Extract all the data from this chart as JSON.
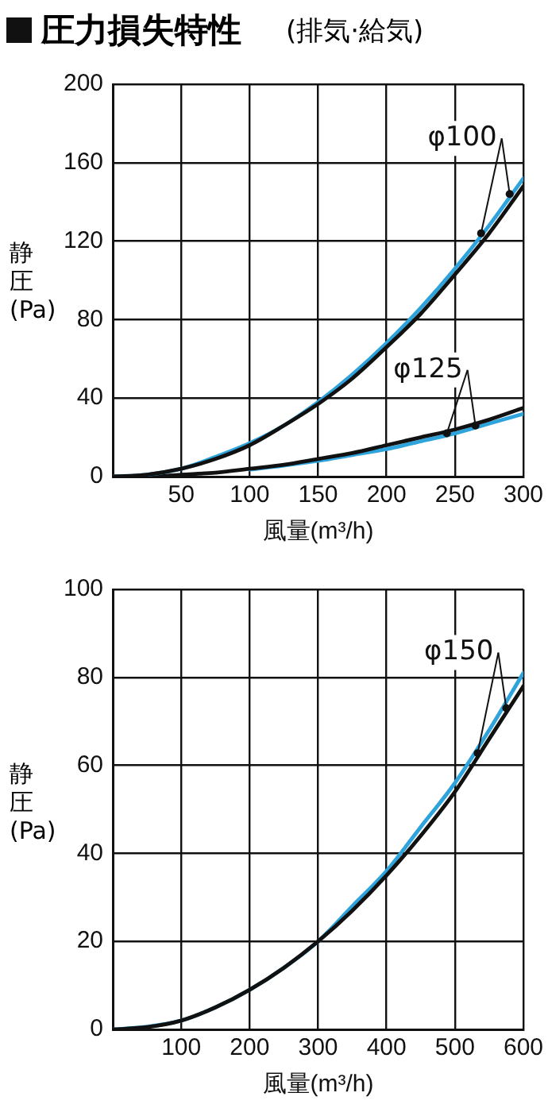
{
  "chart_data": [
    {
      "type": "line",
      "title": "圧力損失特性",
      "subtitle": "(排気·給気)",
      "xlabel": "風量(m³/h)",
      "ylabel": "静圧(Pa)",
      "x": [
        0,
        25,
        50,
        75,
        100,
        125,
        150,
        175,
        200,
        225,
        250,
        275,
        300
      ],
      "series": [
        {
          "color": "#111111",
          "values": [
            0,
            1,
            4,
            9,
            16,
            26,
            37,
            50,
            66,
            83,
            103,
            124,
            148
          ]
        },
        {
          "color": "#2ea3dc",
          "values": [
            0,
            1,
            4,
            10,
            17,
            26,
            38,
            52,
            68,
            86,
            106,
            128,
            152
          ]
        },
        {
          "color": "#111111",
          "values": [
            0,
            0,
            1,
            2,
            4,
            6,
            9,
            12,
            16,
            20,
            24,
            29,
            35
          ]
        },
        {
          "color": "#2ea3dc",
          "values": [
            null,
            null,
            null,
            null,
            3.6,
            5.6,
            8,
            11,
            14,
            18,
            22,
            27,
            32
          ]
        }
      ],
      "xlim": [
        0,
        300
      ],
      "xticks": [
        {
          "value": 0,
          "label": null
        },
        50,
        100,
        150,
        200,
        250,
        300
      ],
      "ylim": [
        0,
        200
      ],
      "yticks": [
        0,
        40,
        80,
        120,
        160,
        200
      ],
      "grid": true,
      "marker": "none",
      "line_style": "solid",
      "annotations": [
        {
          "text": "φ100",
          "x": 290,
          "y": 144
        },
        {
          "text": "φ125",
          "x": 265,
          "y": 26
        }
      ]
    },
    {
      "type": "line",
      "xlabel": "風量(m³/h)",
      "ylabel": "静圧(Pa)",
      "x": [
        0,
        50,
        100,
        150,
        200,
        250,
        300,
        350,
        400,
        450,
        500,
        550,
        600
      ],
      "series": [
        {
          "color": "#111111",
          "values": [
            0,
            0.5,
            2,
            5,
            9,
            14,
            20,
            27,
            35,
            44,
            54,
            66,
            78
          ]
        },
        {
          "color": "#2ea3dc",
          "values": [
            0,
            0.6,
            2,
            5,
            9,
            14,
            20,
            28,
            36,
            46,
            56,
            68,
            81
          ]
        }
      ],
      "xlim": [
        0,
        600
      ],
      "xticks": [
        {
          "value": 0,
          "label": null
        },
        100,
        200,
        300,
        400,
        500,
        600
      ],
      "ylim": [
        0,
        100
      ],
      "yticks": [
        0,
        20,
        40,
        60,
        80,
        100
      ],
      "grid": true,
      "marker": "none",
      "line_style": "solid",
      "annotations": [
        {
          "text": "φ150",
          "x": 575,
          "y": 73
        }
      ]
    }
  ]
}
